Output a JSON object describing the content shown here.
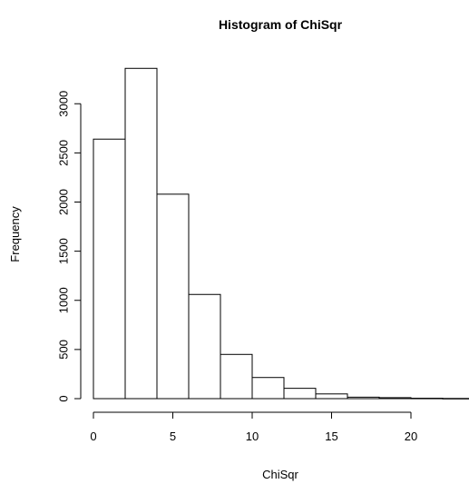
{
  "chart_data": {
    "type": "bar",
    "title": "Histogram of ChiSqr",
    "xlabel": "ChiSqr",
    "ylabel": "Frequency",
    "bin_edges": [
      0,
      2,
      4,
      6,
      8,
      10,
      12,
      14,
      16,
      18,
      20,
      22,
      24
    ],
    "values": [
      2640,
      3360,
      2080,
      1060,
      450,
      215,
      105,
      48,
      15,
      10,
      4,
      2
    ],
    "xlim": [
      0,
      24
    ],
    "ylim": [
      0,
      3400
    ],
    "x_ticks": [
      {
        "value": 0,
        "label": "0"
      },
      {
        "value": 5,
        "label": "5"
      },
      {
        "value": 10,
        "label": "10"
      },
      {
        "value": 15,
        "label": "15"
      },
      {
        "value": 20,
        "label": "20"
      }
    ],
    "y_ticks": [
      {
        "value": 0,
        "label": "0"
      },
      {
        "value": 500,
        "label": "500"
      },
      {
        "value": 1000,
        "label": "1000"
      },
      {
        "value": 1500,
        "label": "1500"
      },
      {
        "value": 2000,
        "label": "2000"
      },
      {
        "value": 2500,
        "label": "2500"
      },
      {
        "value": 3000,
        "label": "3000"
      }
    ],
    "x_axis_range": [
      0,
      20
    ],
    "grid": false,
    "legend": "none",
    "bar_fill": "#ffffff",
    "bar_stroke": "#000000"
  }
}
